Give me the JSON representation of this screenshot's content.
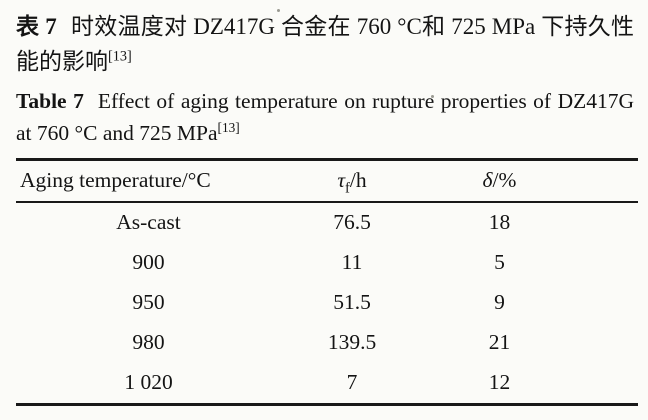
{
  "colors": {
    "background": "#fbfbf8",
    "text": "#141414",
    "rule": "#191919"
  },
  "caption_zh": {
    "label": "表 7",
    "text": "时效温度对 DZ417G 合金在 760 °C和 725 MPa 下持久性能的影响",
    "reference": "[13]"
  },
  "caption_en": {
    "label": "Table 7",
    "text": "Effect of aging temperature on rupture properties of DZ417G at 760 °C and 725 MPa",
    "reference": "[13]"
  },
  "table": {
    "columns": [
      {
        "header": "Aging temperature/°C"
      },
      {
        "symbol": "τ",
        "subscript": "f",
        "unit": "/h"
      },
      {
        "symbol": "δ",
        "unit": "/%"
      }
    ],
    "rows": [
      [
        "As-cast",
        "76.5",
        "18"
      ],
      [
        "900",
        "11",
        "5"
      ],
      [
        "950",
        "51.5",
        "9"
      ],
      [
        "980",
        "139.5",
        "21"
      ],
      [
        "1 020",
        "7",
        "12"
      ]
    ]
  },
  "chart_data": {
    "type": "table",
    "title": "Effect of aging temperature on rupture properties of DZ417G at 760 °C and 725 MPa",
    "columns": [
      "Aging temperature/°C",
      "τf/h",
      "δ/%"
    ],
    "aging_temperature": [
      "As-cast",
      900,
      950,
      980,
      1020
    ],
    "rupture_life_h": [
      76.5,
      11,
      51.5,
      139.5,
      7
    ],
    "elongation_percent": [
      18,
      5,
      9,
      21,
      12
    ]
  }
}
